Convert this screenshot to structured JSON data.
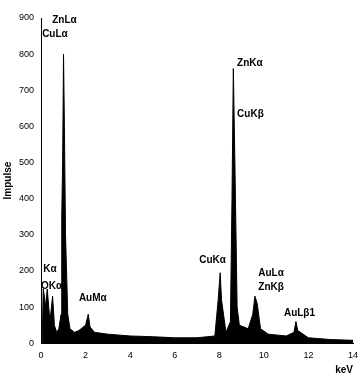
{
  "chart_data": {
    "type": "area",
    "x_label": "keV",
    "y_label": "Impulse",
    "x": [
      0.05,
      0.1,
      0.15,
      0.2,
      0.28,
      0.4,
      0.52,
      0.6,
      0.7,
      0.8,
      0.9,
      0.93,
      0.97,
      1.01,
      1.05,
      1.1,
      1.2,
      1.3,
      1.5,
      1.7,
      2.0,
      2.12,
      2.2,
      2.4,
      3.0,
      4.0,
      5.0,
      6.0,
      7.0,
      7.8,
      7.95,
      8.04,
      8.1,
      8.3,
      8.5,
      8.57,
      8.63,
      8.7,
      8.8,
      8.9,
      9.3,
      9.5,
      9.6,
      9.7,
      9.85,
      10.2,
      11.0,
      11.35,
      11.44,
      11.52,
      12.0,
      13.0,
      14.0
    ],
    "values": [
      0,
      150,
      130,
      100,
      150,
      60,
      130,
      50,
      30,
      40,
      80,
      350,
      500,
      800,
      600,
      300,
      80,
      40,
      30,
      35,
      50,
      80,
      45,
      30,
      25,
      20,
      18,
      15,
      15,
      20,
      120,
      195,
      120,
      30,
      60,
      400,
      760,
      500,
      100,
      50,
      40,
      80,
      130,
      110,
      40,
      25,
      20,
      30,
      60,
      35,
      15,
      10,
      8
    ],
    "color": "#000000",
    "xlim": [
      0,
      14
    ],
    "xticks": [
      0,
      2,
      4,
      6,
      8,
      10,
      12,
      14
    ],
    "ylim": [
      0,
      900
    ],
    "yticks": [
      0,
      100,
      200,
      300,
      400,
      500,
      600,
      700,
      800,
      900
    ],
    "grid": false,
    "annotations": [
      {
        "text": "ZnLα",
        "x": 0.5,
        "y": 880
      },
      {
        "text": "CuLα",
        "x": 0.05,
        "y": 840
      },
      {
        "text": "Kα",
        "x": 0.1,
        "y": 190
      },
      {
        "text": "OKα",
        "x": 0.0,
        "y": 145
      },
      {
        "text": "AuMα",
        "x": 1.7,
        "y": 110
      },
      {
        "text": "CuKα",
        "x": 7.1,
        "y": 215
      },
      {
        "text": "ZnKα",
        "x": 8.8,
        "y": 760
      },
      {
        "text": "CuKβ",
        "x": 8.8,
        "y": 620
      },
      {
        "text": "AuLα",
        "x": 9.75,
        "y": 180
      },
      {
        "text": "ZnKβ",
        "x": 9.75,
        "y": 140
      },
      {
        "text": "AuLβ1",
        "x": 10.9,
        "y": 70
      }
    ]
  }
}
